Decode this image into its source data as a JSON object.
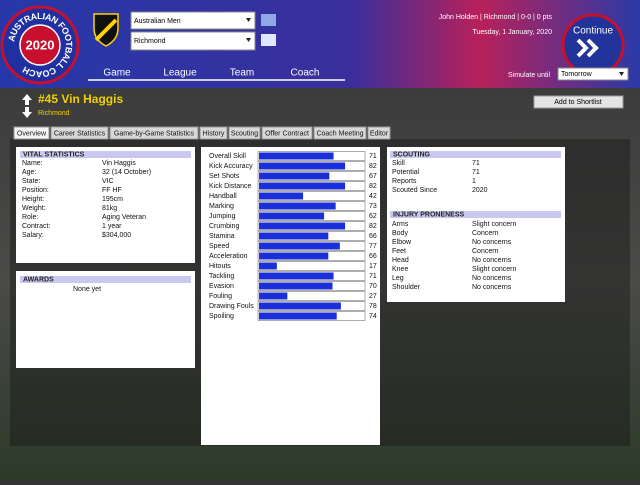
{
  "header": {
    "logo_text": "AUSTRALIAN FOOTBALL COACH",
    "logo_year": "2020",
    "competition": "Australian Men",
    "team": "Richmond",
    "nav": [
      "Game",
      "League",
      "Team",
      "Coach"
    ],
    "status": "John Holden | Richmond | 0-0 | 0 pts",
    "date": "Tuesday, 1 January, 2020",
    "continue": "Continue",
    "simulate_label": "Simulate until",
    "simulate_value": "Tomorrow"
  },
  "player": {
    "title": "#45 Vin Haggis",
    "club": "Richmond",
    "shortlist_button": "Add to Shortlist"
  },
  "tabs": [
    "Overview",
    "Career Statistics",
    "Game-by-Game Statistics",
    "History",
    "Scouting",
    "Offer Contract",
    "Coach Meeting",
    "Editor"
  ],
  "vital_statistics": {
    "title": "VITAL STATISTICS",
    "rows": [
      [
        "Name:",
        "Vin Haggis"
      ],
      [
        "Age:",
        "32 (14 October)"
      ],
      [
        "State:",
        "VIC"
      ],
      [
        "Position:",
        "FF HF"
      ],
      [
        "Height:",
        "195cm"
      ],
      [
        "Weight:",
        "81kg"
      ],
      [
        "Role:",
        "Aging Veteran"
      ],
      [
        "Contract:",
        "1 year"
      ],
      [
        "Salary:",
        "$304,000"
      ]
    ]
  },
  "awards": {
    "title": "AWARDS",
    "text": "None yet"
  },
  "skills": {
    "rows": [
      {
        "label": "Overall Skill",
        "value": 71
      },
      {
        "label": "Kick Accuracy",
        "value": 82
      },
      {
        "label": "Set Shots",
        "value": 67
      },
      {
        "label": "Kick Distance",
        "value": 82
      },
      {
        "label": "Handball",
        "value": 42
      },
      {
        "label": "Marking",
        "value": 73
      },
      {
        "label": "Jumping",
        "value": 62
      },
      {
        "label": "Crumbing",
        "value": 82
      },
      {
        "label": "Stamina",
        "value": 66
      },
      {
        "label": "Speed",
        "value": 77
      },
      {
        "label": "Acceleration",
        "value": 66
      },
      {
        "label": "Hitouts",
        "value": 17
      },
      {
        "label": "Tackling",
        "value": 71
      },
      {
        "label": "Evasion",
        "value": 70
      },
      {
        "label": "Fouling",
        "value": 27
      },
      {
        "label": "Drawing Fouls",
        "value": 78
      },
      {
        "label": "Spoiling",
        "value": 74
      }
    ]
  },
  "scouting": {
    "title": "SCOUTING",
    "rows": [
      [
        "Skill",
        71
      ],
      [
        "Potential",
        71
      ],
      [
        "Reports",
        1
      ],
      [
        "Scouted Since",
        2020
      ]
    ]
  },
  "injury": {
    "title": "INJURY PRONENESS",
    "rows": [
      [
        "Arms",
        "Slight concern"
      ],
      [
        "Body",
        "Concern"
      ],
      [
        "Elbow",
        "No concerns"
      ],
      [
        "Feet",
        "Concern"
      ],
      [
        "Head",
        "No concerns"
      ],
      [
        "Knee",
        "Slight concern"
      ],
      [
        "Leg",
        "No concerns"
      ],
      [
        "Shoulder",
        "No concerns"
      ]
    ]
  }
}
